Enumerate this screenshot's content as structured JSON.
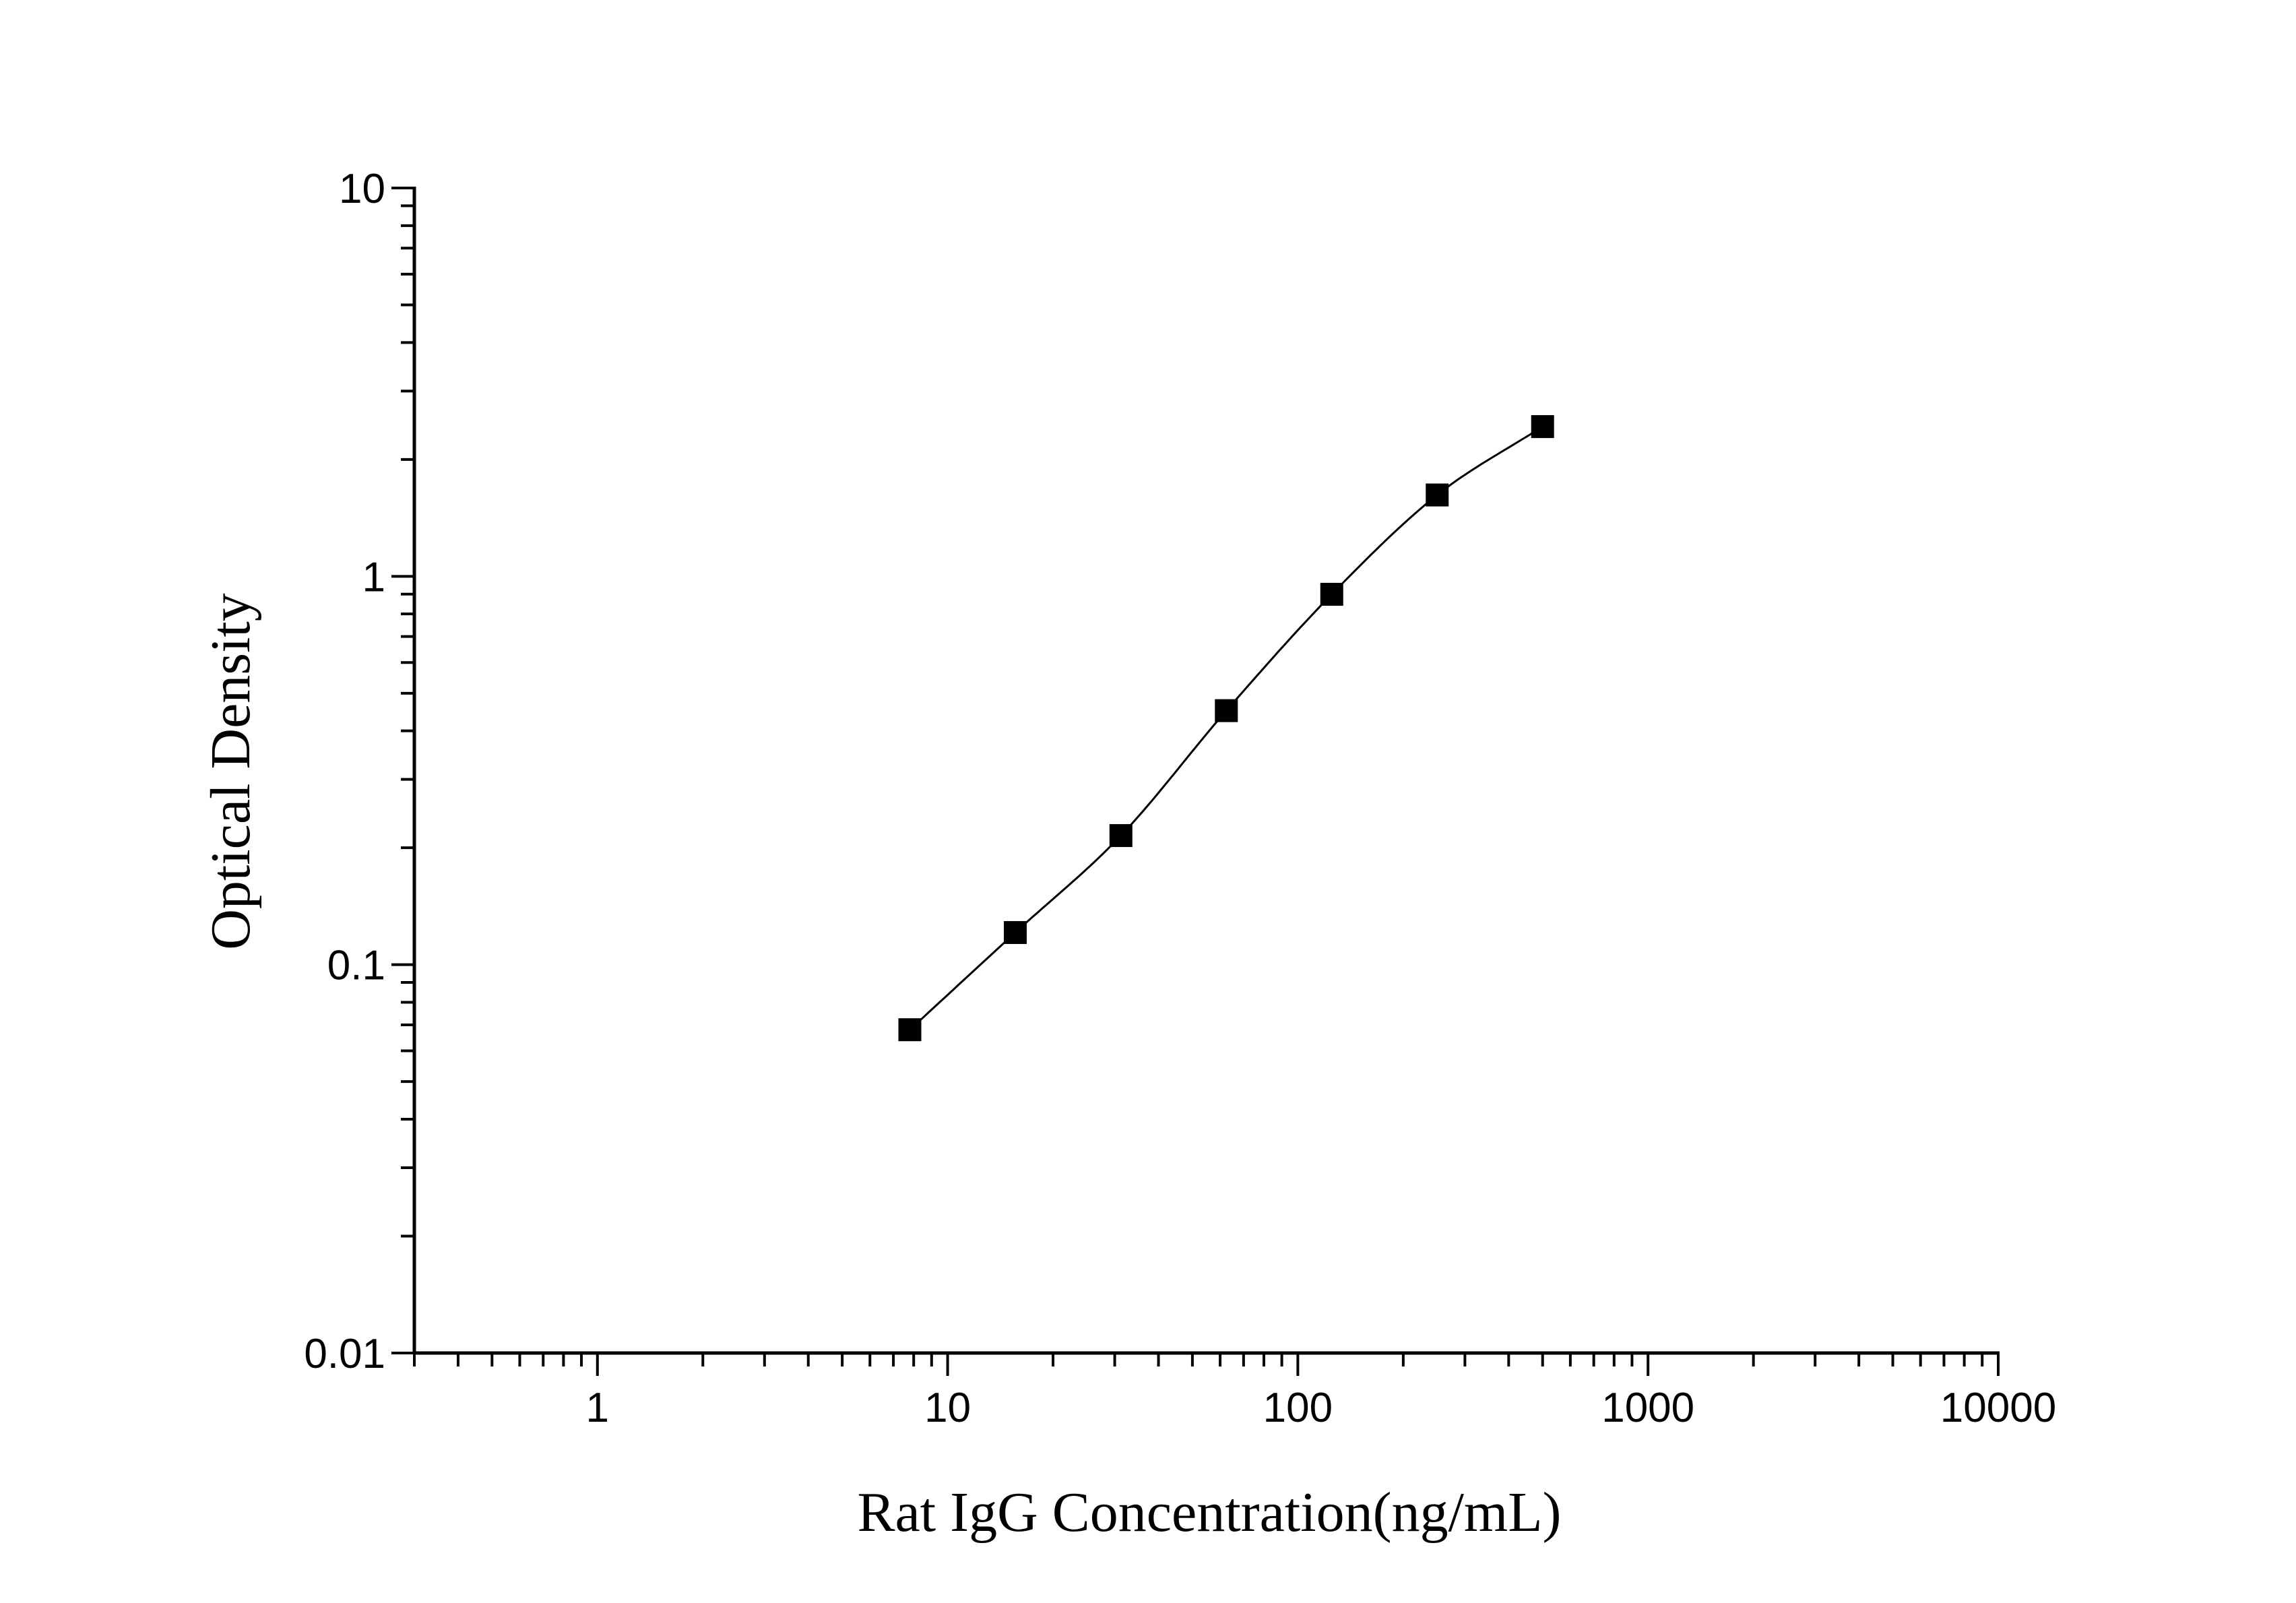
{
  "chart_data": {
    "type": "scatter",
    "xlabel": "Rat IgG Concentration(ng/mL)",
    "ylabel": "Optical Density",
    "xscale": "log",
    "yscale": "log",
    "xlim": [
      0.3,
      10000
    ],
    "ylim": [
      0.01,
      10
    ],
    "x_ticks": [
      1,
      10,
      100,
      1000,
      10000
    ],
    "x_tick_labels": [
      "1",
      "10",
      "100",
      "1000",
      "10000"
    ],
    "y_ticks": [
      0.01,
      0.1,
      1,
      10
    ],
    "y_tick_labels": [
      "0.01",
      "0.1",
      "1",
      "10"
    ],
    "grid": false,
    "legend": false,
    "marker_color": "#000000",
    "line_color": "#000000",
    "series": [
      {
        "x": [
          7.8,
          15.6,
          31.25,
          62.5,
          125,
          250,
          500
        ],
        "y": [
          0.068,
          0.121,
          0.215,
          0.451,
          0.899,
          1.62,
          2.43
        ],
        "marker": "square",
        "fit": "smooth-curve"
      }
    ]
  }
}
